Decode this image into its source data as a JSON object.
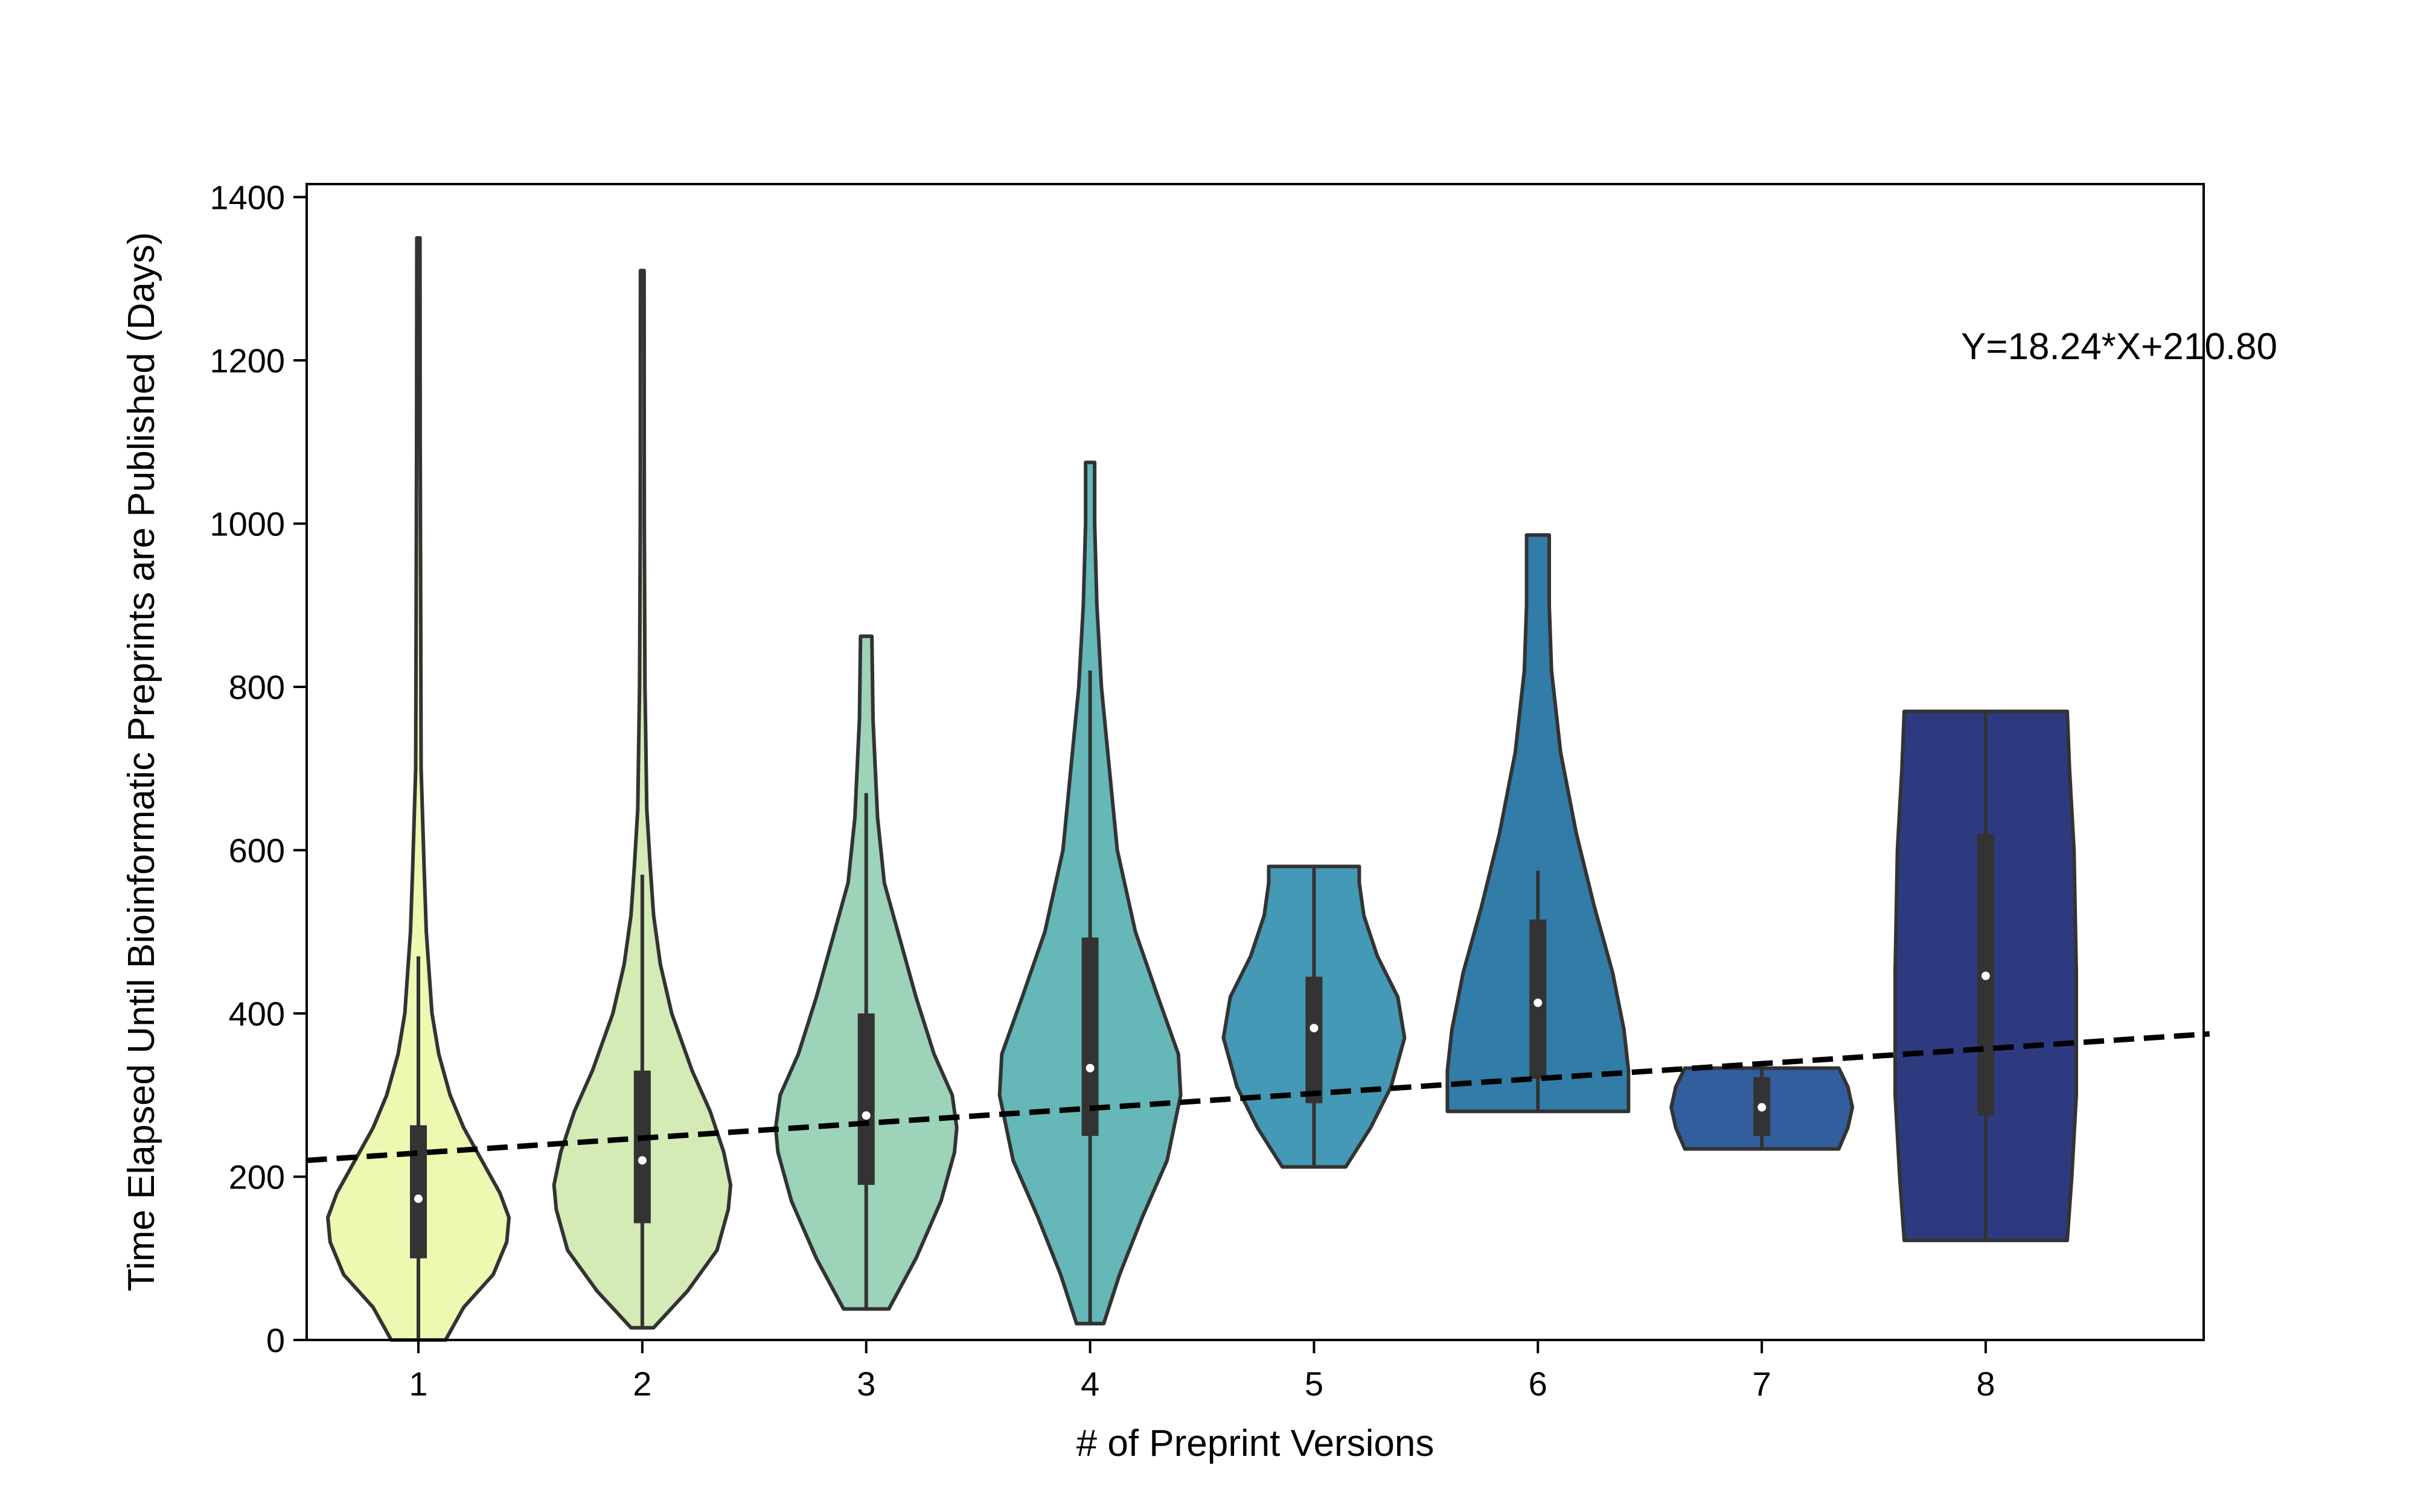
{
  "chart_data": {
    "type": "violin",
    "xlabel": "# of Preprint Versions",
    "ylabel": "Time Elapsed Until Bioinformatic Preprints are Published (Days)",
    "annotation": "Y=18.24*X+210.80",
    "ylim": [
      0,
      1420
    ],
    "xlim": [
      0.5,
      9.0
    ],
    "y_ticks": [
      0,
      200,
      400,
      600,
      800,
      1000,
      1200,
      1400
    ],
    "x_ticks": [
      1,
      2,
      3,
      4,
      5,
      6,
      7,
      8
    ],
    "grid": false,
    "regression": {
      "slope": 18.24,
      "intercept": 210.8,
      "style": "dashed"
    },
    "violins": [
      {
        "category": "1",
        "color": "#edf8b1",
        "min": 0,
        "max": 1350,
        "q1": 100,
        "median": 173,
        "q3": 263,
        "whisker_low": 0,
        "whisker_high": 470,
        "profile": [
          [
            0,
            0.12
          ],
          [
            40,
            0.2
          ],
          [
            80,
            0.33
          ],
          [
            120,
            0.39
          ],
          [
            150,
            0.4
          ],
          [
            180,
            0.36
          ],
          [
            220,
            0.28
          ],
          [
            260,
            0.2
          ],
          [
            300,
            0.14
          ],
          [
            350,
            0.09
          ],
          [
            400,
            0.06
          ],
          [
            500,
            0.035
          ],
          [
            580,
            0.025
          ],
          [
            700,
            0.012
          ],
          [
            900,
            0.01
          ],
          [
            1100,
            0.008
          ],
          [
            1350,
            0.007
          ]
        ]
      },
      {
        "category": "2",
        "color": "#d4ebb5",
        "min": 15,
        "max": 1310,
        "q1": 143,
        "median": 220,
        "q3": 330,
        "whisker_low": 15,
        "whisker_high": 570,
        "profile": [
          [
            15,
            0.05
          ],
          [
            60,
            0.2
          ],
          [
            110,
            0.33
          ],
          [
            160,
            0.38
          ],
          [
            190,
            0.39
          ],
          [
            230,
            0.36
          ],
          [
            280,
            0.3
          ],
          [
            330,
            0.22
          ],
          [
            400,
            0.13
          ],
          [
            460,
            0.08
          ],
          [
            520,
            0.05
          ],
          [
            580,
            0.035
          ],
          [
            650,
            0.02
          ],
          [
            800,
            0.012
          ],
          [
            1000,
            0.009
          ],
          [
            1310,
            0.008
          ]
        ]
      },
      {
        "category": "3",
        "color": "#9dd3b8",
        "min": 38,
        "max": 862,
        "q1": 190,
        "median": 275,
        "q3": 400,
        "whisker_low": 38,
        "whisker_high": 670,
        "profile": [
          [
            38,
            0.1
          ],
          [
            100,
            0.22
          ],
          [
            170,
            0.33
          ],
          [
            230,
            0.39
          ],
          [
            260,
            0.4
          ],
          [
            300,
            0.38
          ],
          [
            350,
            0.3
          ],
          [
            420,
            0.22
          ],
          [
            500,
            0.14
          ],
          [
            560,
            0.08
          ],
          [
            640,
            0.05
          ],
          [
            700,
            0.04
          ],
          [
            760,
            0.03
          ],
          [
            862,
            0.025
          ]
        ]
      },
      {
        "category": "4",
        "color": "#65b7b8",
        "min": 20,
        "max": 1075,
        "q1": 250,
        "median": 333,
        "q3": 493,
        "whisker_low": 20,
        "whisker_high": 820,
        "profile": [
          [
            20,
            0.06
          ],
          [
            80,
            0.13
          ],
          [
            150,
            0.23
          ],
          [
            220,
            0.34
          ],
          [
            300,
            0.4
          ],
          [
            350,
            0.39
          ],
          [
            420,
            0.3
          ],
          [
            500,
            0.2
          ],
          [
            600,
            0.12
          ],
          [
            700,
            0.085
          ],
          [
            800,
            0.05
          ],
          [
            900,
            0.03
          ],
          [
            1000,
            0.02
          ],
          [
            1075,
            0.02
          ]
        ]
      },
      {
        "category": "5",
        "color": "#4499b6",
        "min": 212,
        "max": 580,
        "q1": 290,
        "median": 382,
        "q3": 445,
        "whisker_low": 212,
        "whisker_high": 580,
        "profile": [
          [
            212,
            0.14
          ],
          [
            260,
            0.25
          ],
          [
            310,
            0.34
          ],
          [
            370,
            0.4
          ],
          [
            420,
            0.37
          ],
          [
            470,
            0.28
          ],
          [
            520,
            0.22
          ],
          [
            560,
            0.2
          ],
          [
            580,
            0.2
          ]
        ]
      },
      {
        "category": "6",
        "color": "#327ca8",
        "min": 280,
        "max": 986,
        "q1": 320,
        "median": 413,
        "q3": 515,
        "whisker_low": 280,
        "whisker_high": 575,
        "profile": [
          [
            280,
            0.4
          ],
          [
            330,
            0.4
          ],
          [
            380,
            0.38
          ],
          [
            450,
            0.33
          ],
          [
            530,
            0.25
          ],
          [
            620,
            0.17
          ],
          [
            720,
            0.1
          ],
          [
            820,
            0.06
          ],
          [
            900,
            0.05
          ],
          [
            986,
            0.05
          ]
        ]
      },
      {
        "category": "7",
        "color": "#325e9e",
        "min": 234,
        "max": 333,
        "q1": 250,
        "median": 285,
        "q3": 322,
        "whisker_low": 234,
        "whisker_high": 333,
        "profile": [
          [
            234,
            0.34
          ],
          [
            260,
            0.38
          ],
          [
            285,
            0.4
          ],
          [
            310,
            0.38
          ],
          [
            333,
            0.34
          ]
        ]
      },
      {
        "category": "8",
        "color": "#2e3a80",
        "min": 122,
        "max": 770,
        "q1": 275,
        "median": 446,
        "q3": 620,
        "whisker_low": 122,
        "whisker_high": 770,
        "profile": [
          [
            122,
            0.36
          ],
          [
            200,
            0.38
          ],
          [
            300,
            0.4
          ],
          [
            450,
            0.4
          ],
          [
            600,
            0.39
          ],
          [
            700,
            0.37
          ],
          [
            770,
            0.36
          ]
        ]
      }
    ]
  }
}
